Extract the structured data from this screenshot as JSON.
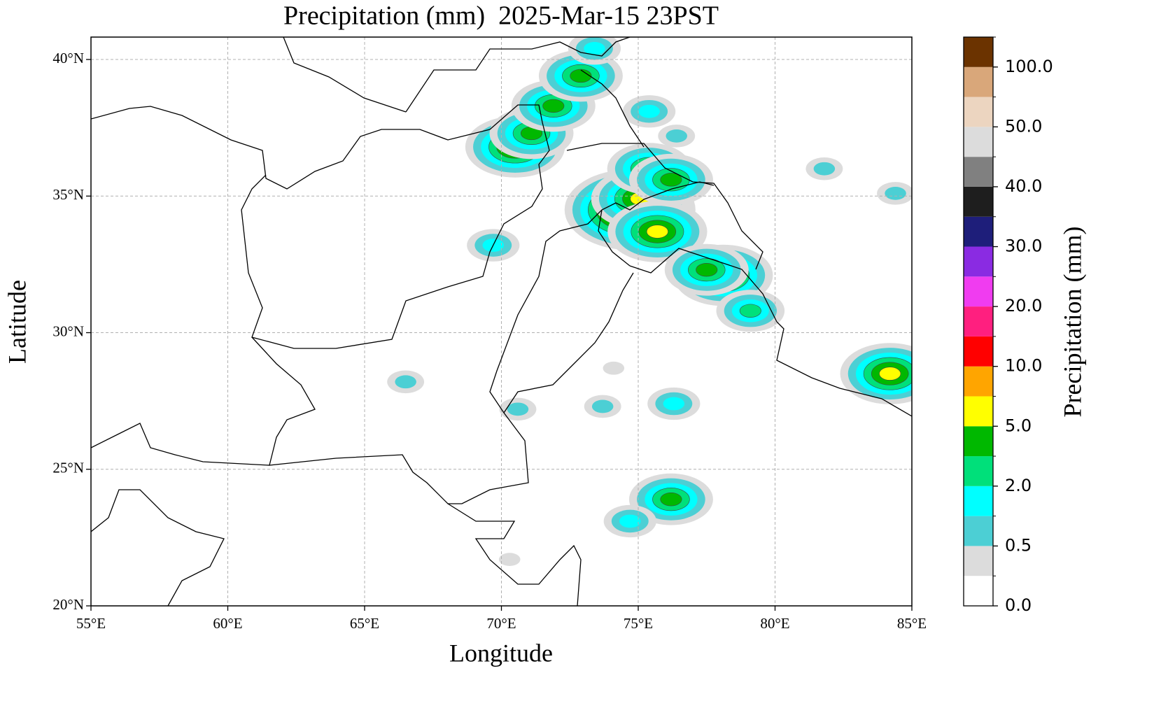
{
  "chart_data": {
    "type": "map",
    "title": "Precipitation (mm)  2025-Mar-15 23PST",
    "x_label": "Longitude",
    "y_label": "Latitude",
    "xlim": [
      55,
      85
    ],
    "ylim": [
      20,
      40.82
    ],
    "xticks": [
      {
        "value": 55,
        "label": "55°E"
      },
      {
        "value": 60,
        "label": "60°E"
      },
      {
        "value": 65,
        "label": "65°E"
      },
      {
        "value": 70,
        "label": "70°E"
      },
      {
        "value": 75,
        "label": "75°E"
      },
      {
        "value": 80,
        "label": "80°E"
      },
      {
        "value": 85,
        "label": "85°E"
      }
    ],
    "yticks": [
      {
        "value": 20,
        "label": "20°N"
      },
      {
        "value": 25,
        "label": "25°N"
      },
      {
        "value": 30,
        "label": "30°N"
      },
      {
        "value": 35,
        "label": "35°N"
      },
      {
        "value": 40,
        "label": "40°N"
      }
    ],
    "grid": true,
    "precipitation": [
      {
        "lon": 70.5,
        "lat": 36.8,
        "value": 6
      },
      {
        "lon": 71.1,
        "lat": 37.3,
        "value": 3
      },
      {
        "lon": 71.9,
        "lat": 38.3,
        "value": 3
      },
      {
        "lon": 72.9,
        "lat": 39.4,
        "value": 3
      },
      {
        "lon": 73.4,
        "lat": 40.4,
        "value": 1
      },
      {
        "lon": 74.7,
        "lat": 34.5,
        "value": 12
      },
      {
        "lon": 75.1,
        "lat": 34.9,
        "value": 6
      },
      {
        "lon": 75.7,
        "lat": 33.7,
        "value": 6
      },
      {
        "lon": 75.4,
        "lat": 36.0,
        "value": 3
      },
      {
        "lon": 76.2,
        "lat": 35.6,
        "value": 3
      },
      {
        "lon": 78.1,
        "lat": 32.1,
        "value": 6
      },
      {
        "lon": 77.5,
        "lat": 32.3,
        "value": 3
      },
      {
        "lon": 79.1,
        "lat": 30.8,
        "value": 2.5
      },
      {
        "lon": 84.2,
        "lat": 28.5,
        "value": 5
      },
      {
        "lon": 76.2,
        "lat": 23.9,
        "value": 3
      },
      {
        "lon": 74.7,
        "lat": 23.1,
        "value": 1
      },
      {
        "lon": 76.3,
        "lat": 27.4,
        "value": 1
      },
      {
        "lon": 73.7,
        "lat": 27.3,
        "value": 0.7
      },
      {
        "lon": 70.6,
        "lat": 27.2,
        "value": 0.8
      },
      {
        "lon": 69.7,
        "lat": 33.2,
        "value": 1
      },
      {
        "lon": 66.5,
        "lat": 28.2,
        "value": 0.8
      },
      {
        "lon": 75.4,
        "lat": 38.1,
        "value": 1
      },
      {
        "lon": 76.4,
        "lat": 37.2,
        "value": 0.7
      },
      {
        "lon": 84.4,
        "lat": 35.1,
        "value": 0.7
      },
      {
        "lon": 81.8,
        "lat": 36.0,
        "value": 0.6
      },
      {
        "lon": 74.1,
        "lat": 28.7,
        "value": 0.3
      },
      {
        "lon": 70.3,
        "lat": 21.7,
        "value": 0.3
      }
    ],
    "colorbar": {
      "label": "Precipitation (mm)",
      "levels": [
        0,
        0.2,
        0.5,
        1,
        2,
        3,
        5,
        7,
        10,
        15,
        20,
        25,
        30,
        35,
        40,
        45,
        50,
        75,
        100,
        150
      ],
      "colors": [
        "#ffffff",
        "#dcdcdc",
        "#4ccfd4",
        "#00ffff",
        "#00e07a",
        "#00b800",
        "#ffff00",
        "#ffa500",
        "#ff0000",
        "#ff1f7f",
        "#f03cf0",
        "#8a2be2",
        "#1e1e7a",
        "#1e1e1e",
        "#808080",
        "#dcdcdc",
        "#ecd5c0",
        "#d9a77a",
        "#6b3300"
      ],
      "ticks": [
        {
          "value": 0,
          "label": "0.0"
        },
        {
          "value": 0.5,
          "label": "0.5"
        },
        {
          "value": 2,
          "label": "2.0"
        },
        {
          "value": 5,
          "label": "5.0"
        },
        {
          "value": 10,
          "label": "10.0"
        },
        {
          "value": 20,
          "label": "20.0"
        },
        {
          "value": 30,
          "label": "30.0"
        },
        {
          "value": 40,
          "label": "40.0"
        },
        {
          "value": 50,
          "label": "50.0"
        },
        {
          "value": 100,
          "label": "100.0"
        }
      ]
    }
  }
}
